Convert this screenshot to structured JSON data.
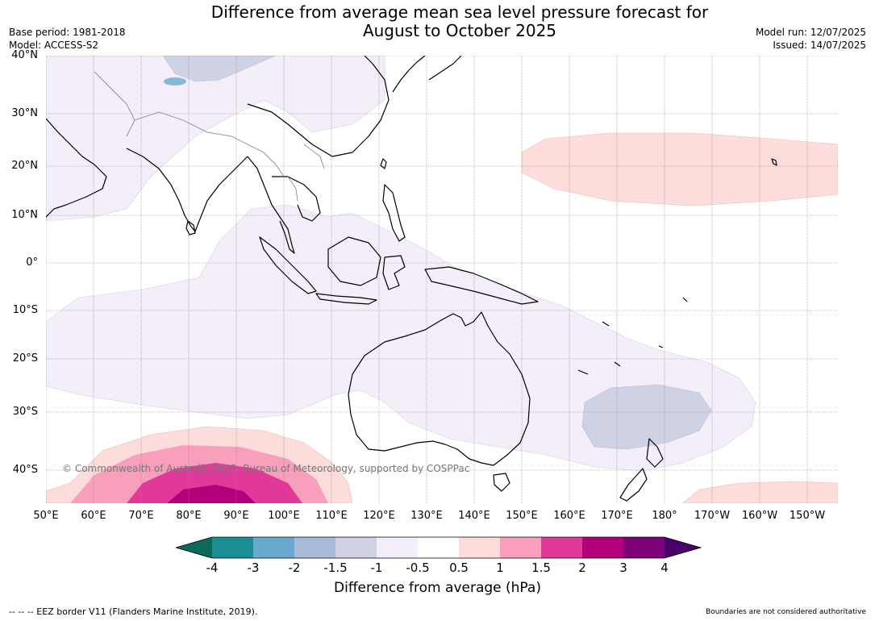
{
  "title_line1": "Difference from average mean sea level pressure forecast for",
  "title_line2": "August to October 2025",
  "meta": {
    "base_period": "Base period: 1981-2018",
    "model": "Model: ACCESS-S2",
    "model_run": "Model run: 12/07/2025",
    "issued": "Issued: 14/07/2025"
  },
  "lat_labels": [
    "40°N",
    "30°N",
    "20°N",
    "10°N",
    "0°",
    "10°S",
    "20°S",
    "30°S",
    "40°S"
  ],
  "lon_labels": [
    "50°E",
    "60°E",
    "70°E",
    "80°E",
    "90°E",
    "100°E",
    "110°E",
    "120°E",
    "130°E",
    "140°E",
    "150°E",
    "160°E",
    "170°E",
    "180°",
    "170°W",
    "160°W",
    "150°W"
  ],
  "copyright": "© Commonwealth of Australia 2025, Bureau of Meteorology, supported by COSPPac",
  "colorbar": {
    "title": "Difference from average (hPa)",
    "tick_labels": [
      "-4",
      "-3",
      "-2",
      "-1.5",
      "-1",
      "-0.5",
      "0.5",
      "1",
      "1.5",
      "2",
      "3",
      "4"
    ],
    "colors": {
      "lt_-4": "#0b6a5a",
      "-4_-3": "#1b8f96",
      "-3_-2": "#69a9d0",
      "-2_-1.5": "#a9bbd8",
      "-1.5_-1": "#cfd1e5",
      "-1_-0.5": "#f3eef7",
      "-0.5_0.5": "#ffffff",
      "0.5_1": "#fddcdc",
      "1_1.5": "#f8a0bb",
      "1.5_2": "#e0399a",
      "2_3": "#b3007a",
      "3_4": "#7a0177",
      "gt_4": "#49006a"
    }
  },
  "footnotes": {
    "eez": "--  --  -- EEZ border V11 (Flanders Marine Institute, 2019).",
    "boundaries": "Boundaries are not considered authoritative"
  }
}
